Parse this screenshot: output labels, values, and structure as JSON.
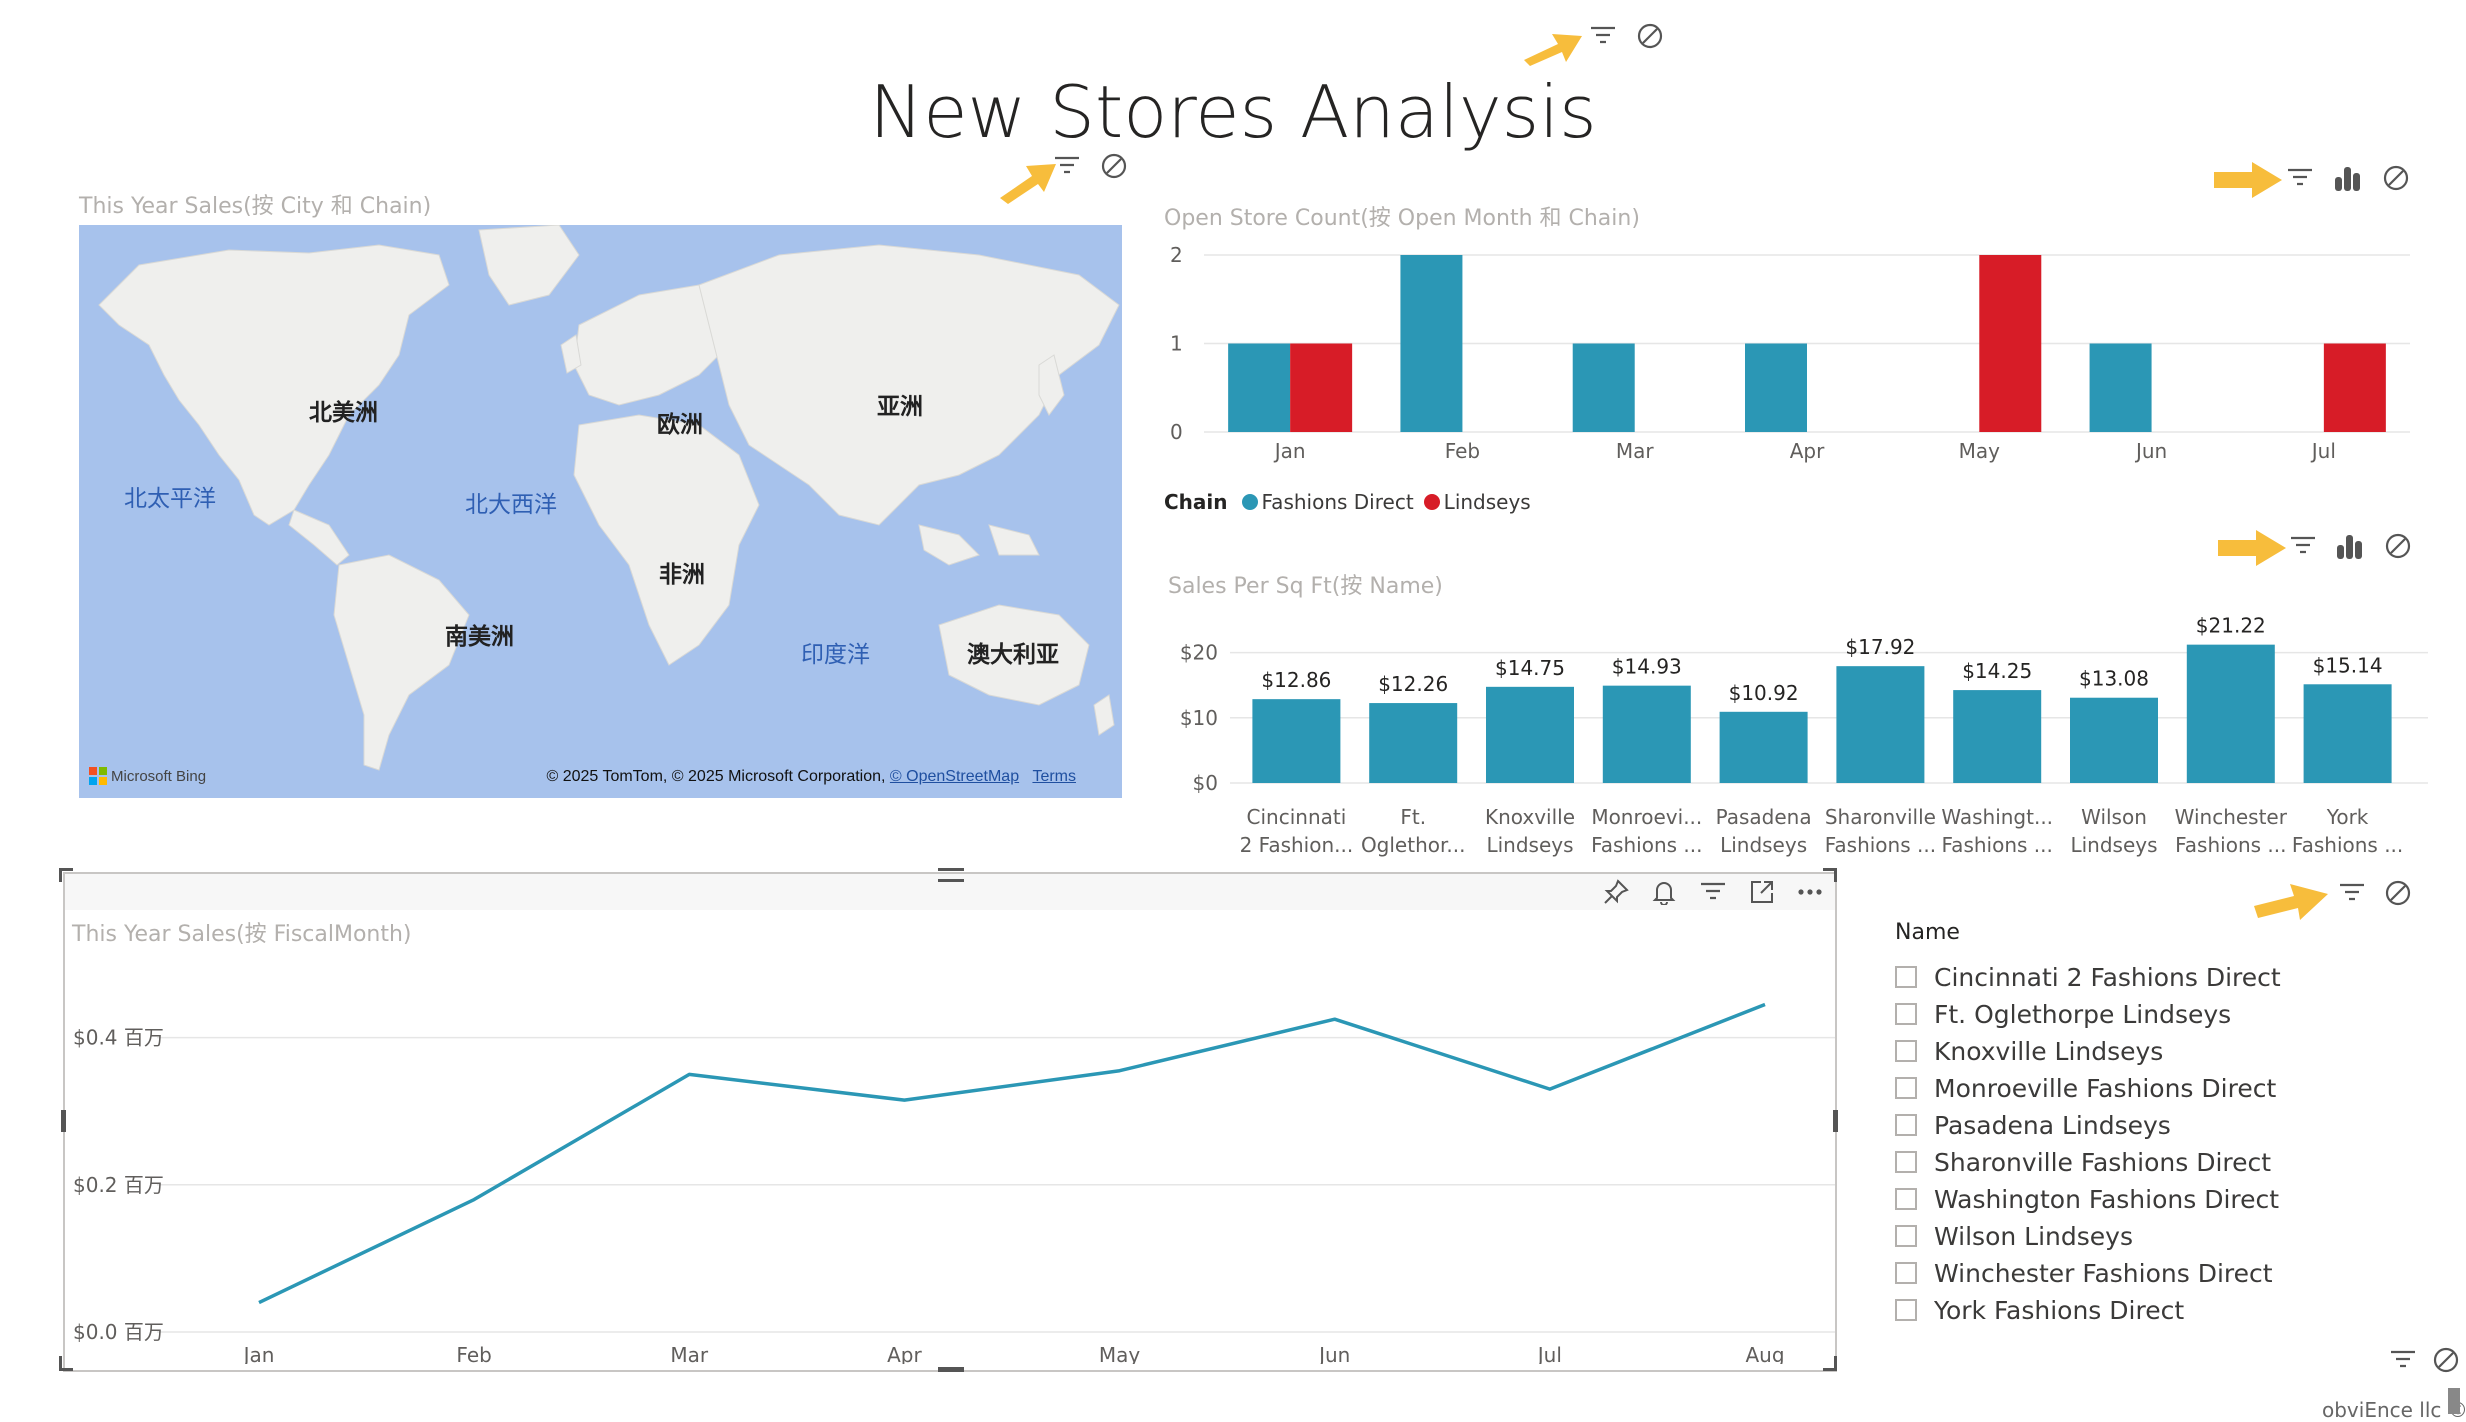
{
  "page": {
    "title": "New Stores Analysis",
    "footer": "obviEnce llc ©"
  },
  "colors": {
    "fashions_direct": "#2b97b5",
    "lindseys": "#d71c27",
    "line": "#2b97b5",
    "arrow": "#f7bd3c",
    "map_water": "#a7c2ec",
    "map_land": "#efefed"
  },
  "map_visual": {
    "title": "This Year Sales(按 City 和 Chain)",
    "continents": [
      {
        "name": "北美洲"
      },
      {
        "name": "欧洲"
      },
      {
        "name": "亚洲"
      },
      {
        "name": "非洲"
      },
      {
        "name": "南美洲"
      },
      {
        "name": "澳大利亚"
      }
    ],
    "oceans": [
      {
        "name": "北太平洋"
      },
      {
        "name": "北大西洋"
      },
      {
        "name": "印度洋"
      }
    ],
    "provider": "Microsoft Bing",
    "credit_text": "© 2025 TomTom, © 2025 Microsoft Corporation, ",
    "credit_link": "© OpenStreetMap",
    "terms_link": "Terms"
  },
  "chart_data": [
    {
      "type": "bar",
      "title": "Open Store Count(按 Open Month 和 Chain)",
      "categories": [
        "Jan",
        "Feb",
        "Mar",
        "Apr",
        "May",
        "Jun",
        "Jul"
      ],
      "series": [
        {
          "name": "Fashions Direct",
          "values": [
            1,
            2,
            1,
            1,
            0,
            1,
            0
          ]
        },
        {
          "name": "Lindseys",
          "values": [
            1,
            0,
            0,
            0,
            2,
            0,
            1
          ]
        }
      ],
      "yticks": [
        "0",
        "1",
        "2"
      ],
      "ylim": [
        0,
        2
      ],
      "legend_title": "Chain",
      "legend": "bottom-left",
      "grid": true
    },
    {
      "type": "bar",
      "title": "Sales Per Sq Ft(按 Name)",
      "categories": [
        [
          "Cincinnati",
          "2 Fashion..."
        ],
        [
          "Ft.",
          "Oglethor..."
        ],
        [
          "Knoxville",
          "Lindseys"
        ],
        [
          "Monroevi...",
          "Fashions ..."
        ],
        [
          "Pasadena",
          "Lindseys"
        ],
        [
          "Sharonville",
          "Fashions ..."
        ],
        [
          "Washingt...",
          "Fashions ..."
        ],
        [
          "Wilson",
          "Lindseys"
        ],
        [
          "Winchester",
          "Fashions ..."
        ],
        [
          "York",
          "Fashions ..."
        ]
      ],
      "values": [
        12.86,
        12.26,
        14.75,
        14.93,
        10.92,
        17.92,
        14.25,
        13.08,
        21.22,
        15.14
      ],
      "data_labels": [
        "$12.86",
        "$12.26",
        "$14.75",
        "$14.93",
        "$10.92",
        "$17.92",
        "$14.25",
        "$13.08",
        "$21.22",
        "$15.14"
      ],
      "yticks": [
        "$0",
        "$10",
        "$20"
      ],
      "ylim": [
        0,
        25
      ],
      "grid": true
    },
    {
      "type": "line",
      "title": "This Year Sales(按 FiscalMonth)",
      "x": [
        "Jan",
        "Feb",
        "Mar",
        "Apr",
        "May",
        "Jun",
        "Jul",
        "Aug"
      ],
      "series": [
        {
          "values": [
            0.04,
            0.18,
            0.35,
            0.315,
            0.355,
            0.425,
            0.33,
            0.445
          ]
        }
      ],
      "unit": "百万",
      "yticks": [
        "$0.0 百万",
        "$0.2 百万",
        "$0.4 百万"
      ],
      "ylim": [
        0,
        0.5
      ],
      "grid": true
    }
  ],
  "slicer": {
    "header": "Name",
    "items": [
      "Cincinnati 2 Fashions Direct",
      "Ft. Oglethorpe Lindseys",
      "Knoxville Lindseys",
      "Monroeville Fashions Direct",
      "Pasadena Lindseys",
      "Sharonville Fashions Direct",
      "Washington Fashions Direct",
      "Wilson Lindseys",
      "Winchester Fashions Direct",
      "York Fashions Direct"
    ]
  },
  "icons": {
    "filter": "filter-icon",
    "no_entry": "no-entry-icon",
    "analytics": "analytics-icon",
    "pin": "pin-icon",
    "bell": "bell-icon",
    "focus": "focus-mode-icon",
    "more": "more-options-icon"
  }
}
